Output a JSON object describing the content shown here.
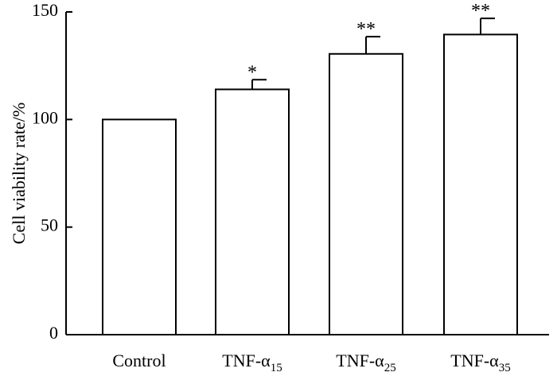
{
  "chart_data": {
    "type": "bar",
    "categories": [
      {
        "base": "Control",
        "sub": ""
      },
      {
        "base": "TNF-α",
        "sub": "15"
      },
      {
        "base": "TNF-α",
        "sub": "25"
      },
      {
        "base": "TNF-α",
        "sub": "35"
      }
    ],
    "values": [
      100,
      114,
      130.5,
      139.5
    ],
    "errors": [
      0,
      4.5,
      8,
      7.5
    ],
    "significance": [
      "",
      "*",
      "**",
      "**"
    ],
    "title": "",
    "xlabel": "",
    "ylabel": "Cell viability rate/%",
    "ylim": [
      0,
      150
    ],
    "yticks": [
      0,
      50,
      100,
      150
    ],
    "grid": false,
    "legend": "none",
    "bar_fill": "#ffffff",
    "bar_stroke": "#000000"
  }
}
